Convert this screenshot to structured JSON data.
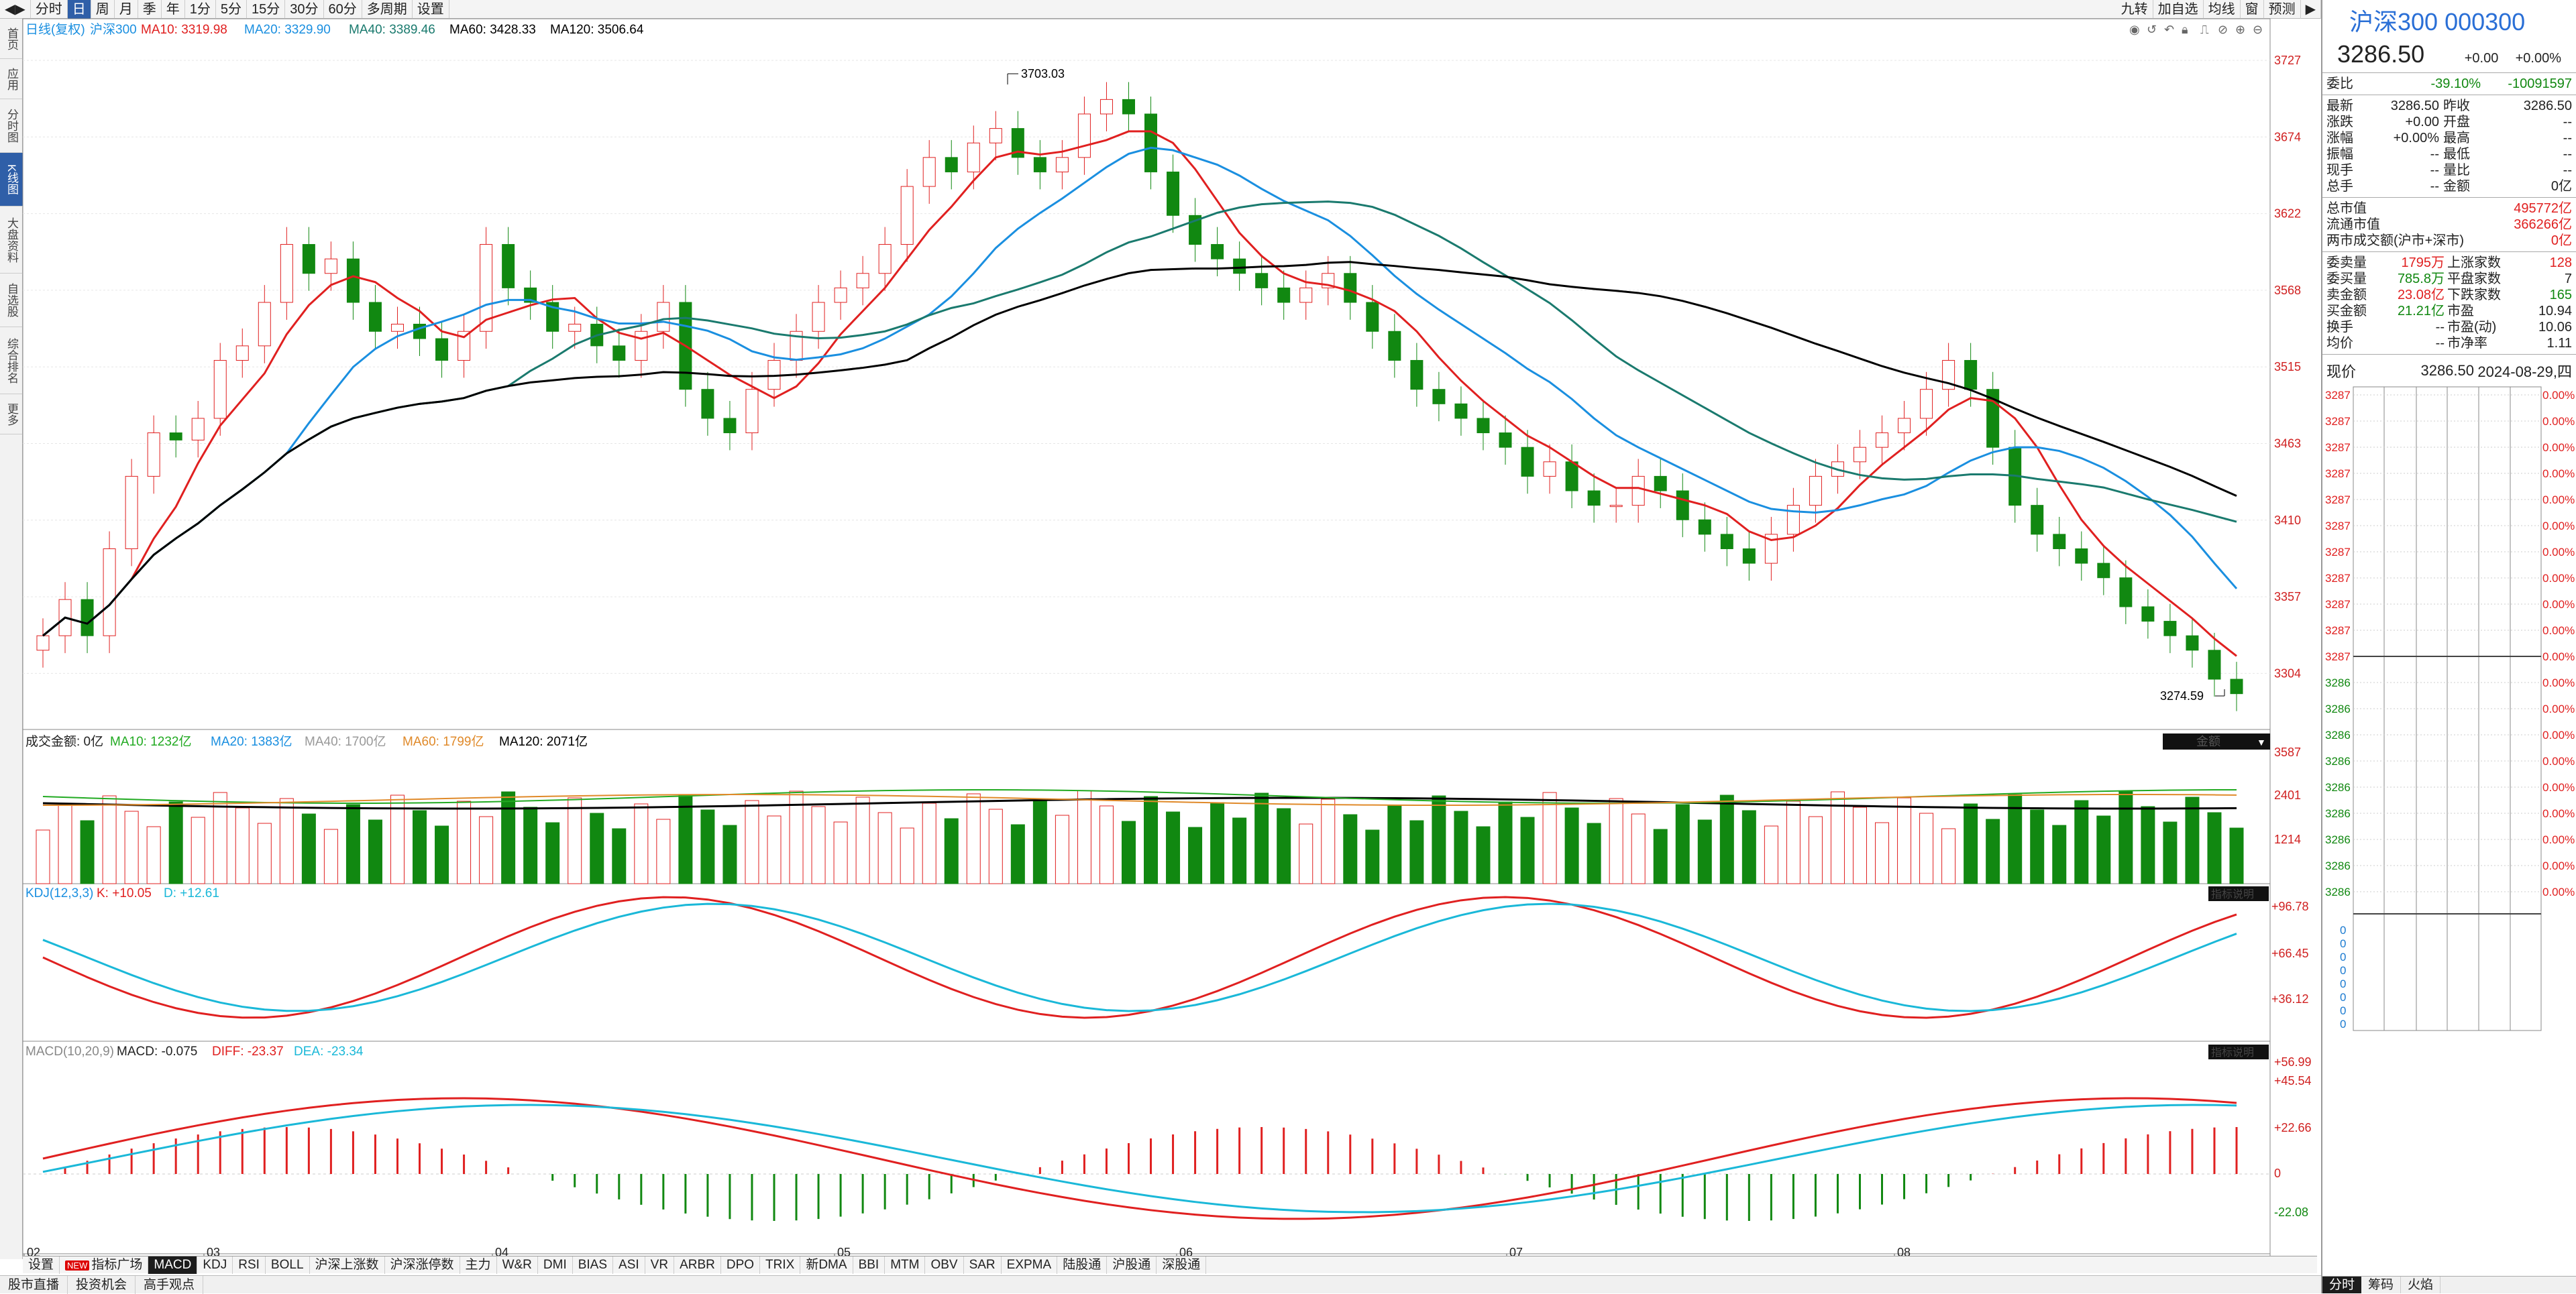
{
  "toolbar": {
    "items": [
      "分时",
      "日",
      "周",
      "月",
      "季",
      "年",
      "1分",
      "5分",
      "15分",
      "30分",
      "60分",
      "多周期",
      "设置"
    ],
    "active": "日",
    "right_items": [
      "九转",
      "加自选",
      "均线",
      "窗",
      "预测"
    ]
  },
  "left_tabs": [
    "首页",
    "应用",
    "分时图",
    "K线图",
    "大盘资料",
    "自选股",
    "综合排名",
    "更多"
  ],
  "left_active": "K线图",
  "main_legend": {
    "label": "日线(复权)",
    "name": "沪深300",
    "ma10": "MA10: 3319.98",
    "ma20": "MA20: 3329.90",
    "ma40": "MA40: 3389.46",
    "ma60": "MA60: 3428.33",
    "ma120": "MA120: 3506.64"
  },
  "price_axis": [
    "3727",
    "3674",
    "3622",
    "3568",
    "3515",
    "3463",
    "3410",
    "3357",
    "3304"
  ],
  "annotations": {
    "high": "3703.03",
    "low": "3274.59"
  },
  "volume_legend": {
    "label": "成交金额: 0亿",
    "ma10": "MA10: 1232亿",
    "ma20": "MA20: 1383亿",
    "ma40": "MA40: 1700亿",
    "ma60": "MA60: 1799亿",
    "ma120": "MA120: 2071亿",
    "tag": "金额"
  },
  "volume_axis": [
    "3587",
    "2401",
    "1214"
  ],
  "kdj_legend": {
    "label": "KDJ(12,3,3)",
    "k": "K: +10.05",
    "d": "D: +12.61",
    "tag": "指标说明"
  },
  "kdj_axis": [
    "+96.78",
    "+66.45",
    "+36.12"
  ],
  "macd_legend": {
    "label": "MACD(10,20,9)",
    "macd": "MACD: -0.075",
    "diff": "DIFF: -23.37",
    "dea": "DEA: -23.34",
    "tag": "指标说明"
  },
  "macd_axis": [
    "+56.99",
    "+45.54",
    "+22.66",
    "0",
    "-22.08"
  ],
  "date_axis": [
    "02",
    "03",
    "04",
    "05",
    "06",
    "07",
    "08"
  ],
  "bottom_tabs": [
    "设置",
    "指标广场",
    "MACD",
    "KDJ",
    "RSI",
    "BOLL",
    "沪深上涨数",
    "沪深涨停数",
    "主力",
    "W&R",
    "DMI",
    "BIAS",
    "ASI",
    "VR",
    "ARBR",
    "DPO",
    "TRIX",
    "新DMA",
    "BBI",
    "MTM",
    "OBV",
    "SAR",
    "EXPMA",
    "陆股通",
    "沪股通",
    "深股通"
  ],
  "bottom_tabs_active": "MACD",
  "bottom_tabs_new": "NEW",
  "bottom_bar": [
    "股市直播",
    "投资机会",
    "高手观点"
  ],
  "right_panel": {
    "title": "沪深300 000300",
    "price": "3286.50",
    "change": "+0.00",
    "change_pct": "+0.00%",
    "weibi": {
      "k": "委比",
      "v1": "-39.10%",
      "v2": "-10091597"
    },
    "quote_rows": [
      {
        "k1": "最新",
        "v1": "3286.50",
        "k2": "昨收",
        "v2": "3286.50"
      },
      {
        "k1": "涨跌",
        "v1": "+0.00",
        "k2": "开盘",
        "v2": "--"
      },
      {
        "k1": "涨幅",
        "v1": "+0.00%",
        "k2": "最高",
        "v2": "--"
      },
      {
        "k1": "振幅",
        "v1": "--",
        "k2": "最低",
        "v2": "--"
      },
      {
        "k1": "现手",
        "v1": "--",
        "k2": "量比",
        "v2": "--"
      },
      {
        "k1": "总手",
        "v1": "--",
        "k2": "金额",
        "v2": "0亿"
      }
    ],
    "mv_rows": [
      {
        "k": "总市值",
        "v": "495772亿"
      },
      {
        "k": "流通市值",
        "v": "366266亿"
      },
      {
        "k": "两市成交额(沪市+深市)",
        "v": "0亿"
      }
    ],
    "stat_rows": [
      {
        "k1": "委卖量",
        "v1": "1795万",
        "k2": "上涨家数",
        "v2": "128"
      },
      {
        "k1": "委买量",
        "v1": "785.8万",
        "k2": "平盘家数",
        "v2": "7"
      },
      {
        "k1": "卖金额",
        "v1": "23.08亿",
        "k2": "下跌家数",
        "v2": "165"
      },
      {
        "k1": "买金额",
        "v1": "21.21亿",
        "k2": "市盈",
        "v2": "10.94"
      },
      {
        "k1": "换手",
        "v1": "--",
        "k2": "市盈(动)",
        "v2": "10.06"
      },
      {
        "k1": "均价",
        "v1": "--",
        "k2": "市净率",
        "v2": "1.11"
      }
    ],
    "now_label": "现价",
    "now_price": "3286.50",
    "now_date": "2024-08-29,四",
    "mini_price_labels": [
      "3287",
      "3287",
      "3287",
      "3287",
      "3287",
      "3287",
      "3287",
      "3287",
      "3287",
      "3287",
      "3287",
      "3286",
      "3286",
      "3286",
      "3286",
      "3286",
      "3286",
      "3286",
      "3286",
      "3286"
    ],
    "mini_pct_labels": [
      "0.00%",
      "0.00%",
      "0.00%",
      "0.00%",
      "0.00%",
      "0.00%",
      "0.00%",
      "0.00%",
      "0.00%",
      "0.00%",
      "0.00%",
      "0.00%",
      "0.00%",
      "0.00%",
      "0.00%",
      "0.00%",
      "0.00%",
      "0.00%",
      "0.00%",
      "0.00%"
    ],
    "mini_vol_labels": [
      "0",
      "0",
      "0",
      "0",
      "0",
      "0",
      "0",
      "0"
    ],
    "bottom_tabs": [
      "分时",
      "筹码",
      "火焰"
    ]
  },
  "colors": {
    "up": "#e02020",
    "down": "#118811",
    "ma10": "#e02020",
    "ma20": "#1a8fe0",
    "ma40": "#1a7a6e",
    "ma60": "#000000",
    "kdj_k": "#e02020",
    "kdj_d": "#1ab8d8",
    "vol_ma60": "#e08a2a",
    "vol_ma40": "#999999",
    "vol_ma10": "#22aa22"
  }
}
